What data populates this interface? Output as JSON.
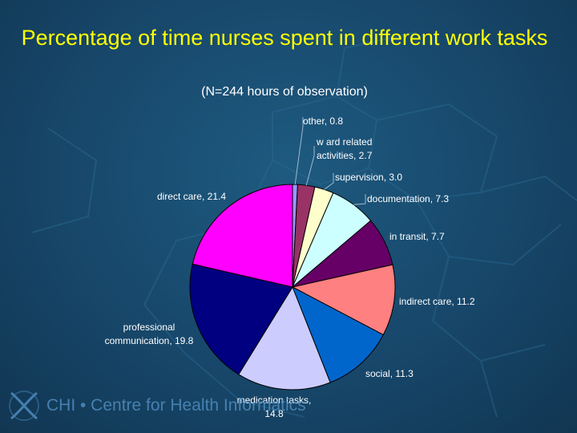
{
  "chart_data": {
    "type": "pie",
    "title": "Percentage of time nurses spent in different work tasks",
    "subtitle": "(N=244 hours of observation)",
    "slices": [
      {
        "label": "other, 0.8",
        "value": 0.8,
        "color": "#9999ff"
      },
      {
        "label": "w ard related activities, 2.7",
        "value": 2.7,
        "color": "#993366"
      },
      {
        "label": "supervision, 3.0",
        "value": 3.0,
        "color": "#ffffcc"
      },
      {
        "label": "documentation, 7.3",
        "value": 7.3,
        "color": "#ccffff"
      },
      {
        "label": "in transit, 7.7",
        "value": 7.7,
        "color": "#660066"
      },
      {
        "label": "indirect care, 11.2",
        "value": 11.2,
        "color": "#ff8080"
      },
      {
        "label": "social, 11.3",
        "value": 11.3,
        "color": "#0066cc"
      },
      {
        "label": "medication tasks, 14.8",
        "value": 14.8,
        "color": "#ccccff"
      },
      {
        "label": "professional communication, 19.8",
        "value": 19.8,
        "color": "#000080"
      },
      {
        "label": "direct care, 21.4",
        "value": 21.4,
        "color": "#ff00ff"
      }
    ]
  },
  "footer": {
    "logo_text": "CHI • Centre for Health Informatics"
  }
}
